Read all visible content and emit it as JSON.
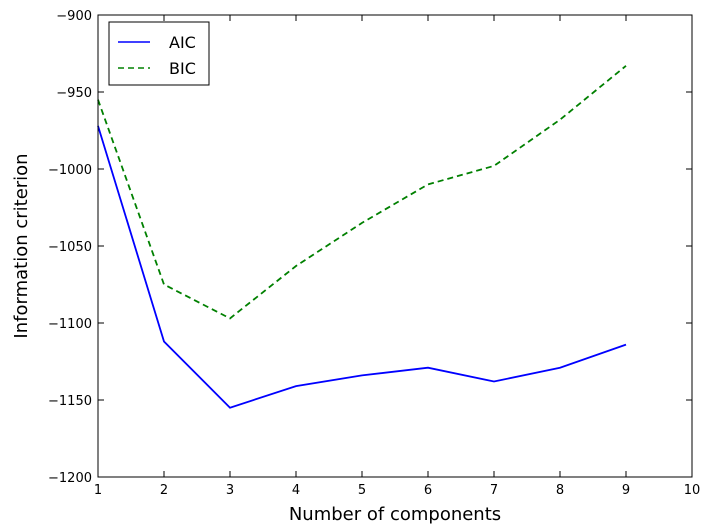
{
  "chart_data": {
    "type": "line",
    "xlabel": "Number of components",
    "ylabel": "Information criterion",
    "xlim": [
      1,
      10
    ],
    "ylim": [
      -1200,
      -900
    ],
    "xticks": [
      "1",
      "2",
      "3",
      "4",
      "5",
      "6",
      "7",
      "8",
      "9",
      "10"
    ],
    "yticks": [
      "−900",
      "−950",
      "−1000",
      "−1050",
      "−1100",
      "−1150",
      "−1200"
    ],
    "grid": false,
    "legend_position": "top-left",
    "x": [
      1,
      2,
      3,
      4,
      5,
      6,
      7,
      8,
      9
    ],
    "series": [
      {
        "name": "AIC",
        "color": "#0000ff",
        "style": "solid",
        "values": [
          -972,
          -1112,
          -1155,
          -1141,
          -1134,
          -1129,
          -1138,
          -1129,
          -1114
        ]
      },
      {
        "name": "BIC",
        "color": "#008000",
        "style": "dashed",
        "values": [
          -955,
          -1075,
          -1097,
          -1063,
          -1035,
          -1010,
          -998,
          -968,
          -933
        ]
      }
    ]
  }
}
